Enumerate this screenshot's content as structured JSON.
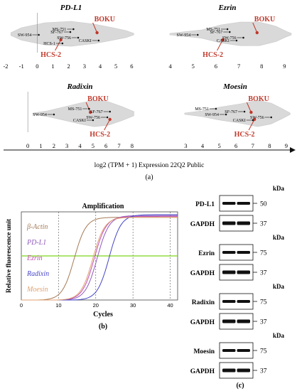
{
  "panel_a": {
    "axis_title": "log2 (TPM + 1) Expression 22Q2 Public",
    "label": "(a)",
    "subplots": [
      {
        "title": "PD-L1",
        "x_ticks": [
          -2,
          -1,
          0,
          1,
          2,
          3,
          4,
          5,
          6
        ],
        "xlim": [
          -2,
          6.3
        ],
        "labels": [
          {
            "name": "BOKU",
            "x": 3.8,
            "highlight": true
          },
          {
            "name": "HCS-2",
            "x": 1.5,
            "highlight": true
          },
          {
            "name": "MS-751",
            "x": 2.3,
            "highlight": false
          },
          {
            "name": "SF-767",
            "x": 2.1,
            "highlight": false
          },
          {
            "name": "SW-954",
            "x": 0.1,
            "highlight": false
          },
          {
            "name": "SW-756",
            "x": 2.6,
            "highlight": false
          },
          {
            "name": "CASKI",
            "x": 3.9,
            "highlight": false
          },
          {
            "name": "HCS-1",
            "x": 1.6,
            "highlight": false
          }
        ]
      },
      {
        "title": "Ezrin",
        "x_ticks": [
          4,
          5,
          6,
          7,
          8,
          9
        ],
        "xlim": [
          3.7,
          9.3
        ],
        "labels": [
          {
            "name": "BOKU",
            "x": 7.8,
            "highlight": true
          },
          {
            "name": "HCS-2",
            "x": 6.3,
            "highlight": true
          },
          {
            "name": "MS-751",
            "x": 6.5,
            "highlight": false
          },
          {
            "name": "SF-767",
            "x": 6.6,
            "highlight": false
          },
          {
            "name": "SW-954",
            "x": 5.2,
            "highlight": false
          },
          {
            "name": "SW-756",
            "x": 7.2,
            "highlight": false
          },
          {
            "name": "CASKI",
            "x": 6.9,
            "highlight": false
          }
        ]
      },
      {
        "title": "Radixin",
        "x_ticks": [
          0,
          1,
          2,
          3,
          4,
          5,
          6,
          7,
          8
        ],
        "xlim": [
          -0.5,
          8.5
        ],
        "labels": [
          {
            "name": "BOKU",
            "x": 4.8,
            "highlight": true
          },
          {
            "name": "HCS-2",
            "x": 6.3,
            "highlight": true
          },
          {
            "name": "MS-751",
            "x": 4.7,
            "highlight": false
          },
          {
            "name": "SF-767",
            "x": 6.3,
            "highlight": false
          },
          {
            "name": "SW-954",
            "x": 2.0,
            "highlight": false
          },
          {
            "name": "SW-756",
            "x": 6.1,
            "highlight": false
          },
          {
            "name": "CASKI",
            "x": 5.0,
            "highlight": false
          }
        ]
      },
      {
        "title": "Moesin",
        "x_ticks": [
          3,
          4,
          5,
          6,
          7,
          8,
          9
        ],
        "xlim": [
          2.6,
          9.3
        ],
        "labels": [
          {
            "name": "BOKU",
            "x": 6.9,
            "highlight": true
          },
          {
            "name": "HCS-2",
            "x": 7.1,
            "highlight": true
          },
          {
            "name": "MS-751",
            "x": 4.8,
            "highlight": false
          },
          {
            "name": "SF-767",
            "x": 6.5,
            "highlight": false
          },
          {
            "name": "SW-954",
            "x": 5.4,
            "highlight": false
          },
          {
            "name": "SW-756",
            "x": 8.1,
            "highlight": false
          },
          {
            "name": "CASKI",
            "x": 7.0,
            "highlight": false
          }
        ]
      }
    ]
  },
  "chart_data": {
    "type": "line",
    "title": "Amplification",
    "xlabel": "Cycles",
    "ylabel": "Relative fluorescence unit",
    "xlim": [
      0,
      42
    ],
    "x_ticks": [
      0,
      10,
      20,
      30,
      40
    ],
    "grid": "dashed-vertical",
    "legend_position": "left",
    "threshold_value": 0.5,
    "series": [
      {
        "name": "β-Actin",
        "color": "#a57a55",
        "ct": 14.2,
        "plateau": 0.94
      },
      {
        "name": "PD-L1",
        "color": "#8f5bbd",
        "ct": 20.4,
        "plateau": 0.96
      },
      {
        "name": "Ezrin",
        "color": "#c24fb1",
        "ct": 19.6,
        "plateau": 0.95
      },
      {
        "name": "Radixin",
        "color": "#4646c8",
        "ct": 23.6,
        "plateau": 0.97
      },
      {
        "name": "Moesin",
        "color": "#e0a070",
        "ct": 19.2,
        "plateau": 0.94
      }
    ],
    "threshold_color": "#7cd51f",
    "label": "(b)"
  },
  "panel_c": {
    "unit": "kDa",
    "label": "(c)",
    "blots": [
      {
        "protein": "PD-L1",
        "kda": "50"
      },
      {
        "protein": "GAPDH",
        "kda": "37"
      },
      {
        "protein": "Ezrin",
        "kda": "75"
      },
      {
        "protein": "GAPDH",
        "kda": "37"
      },
      {
        "protein": "Radixin",
        "kda": "75"
      },
      {
        "protein": "GAPDH",
        "kda": "37"
      },
      {
        "protein": "Moesin",
        "kda": "75"
      },
      {
        "protein": "GAPDH",
        "kda": "37"
      }
    ]
  }
}
